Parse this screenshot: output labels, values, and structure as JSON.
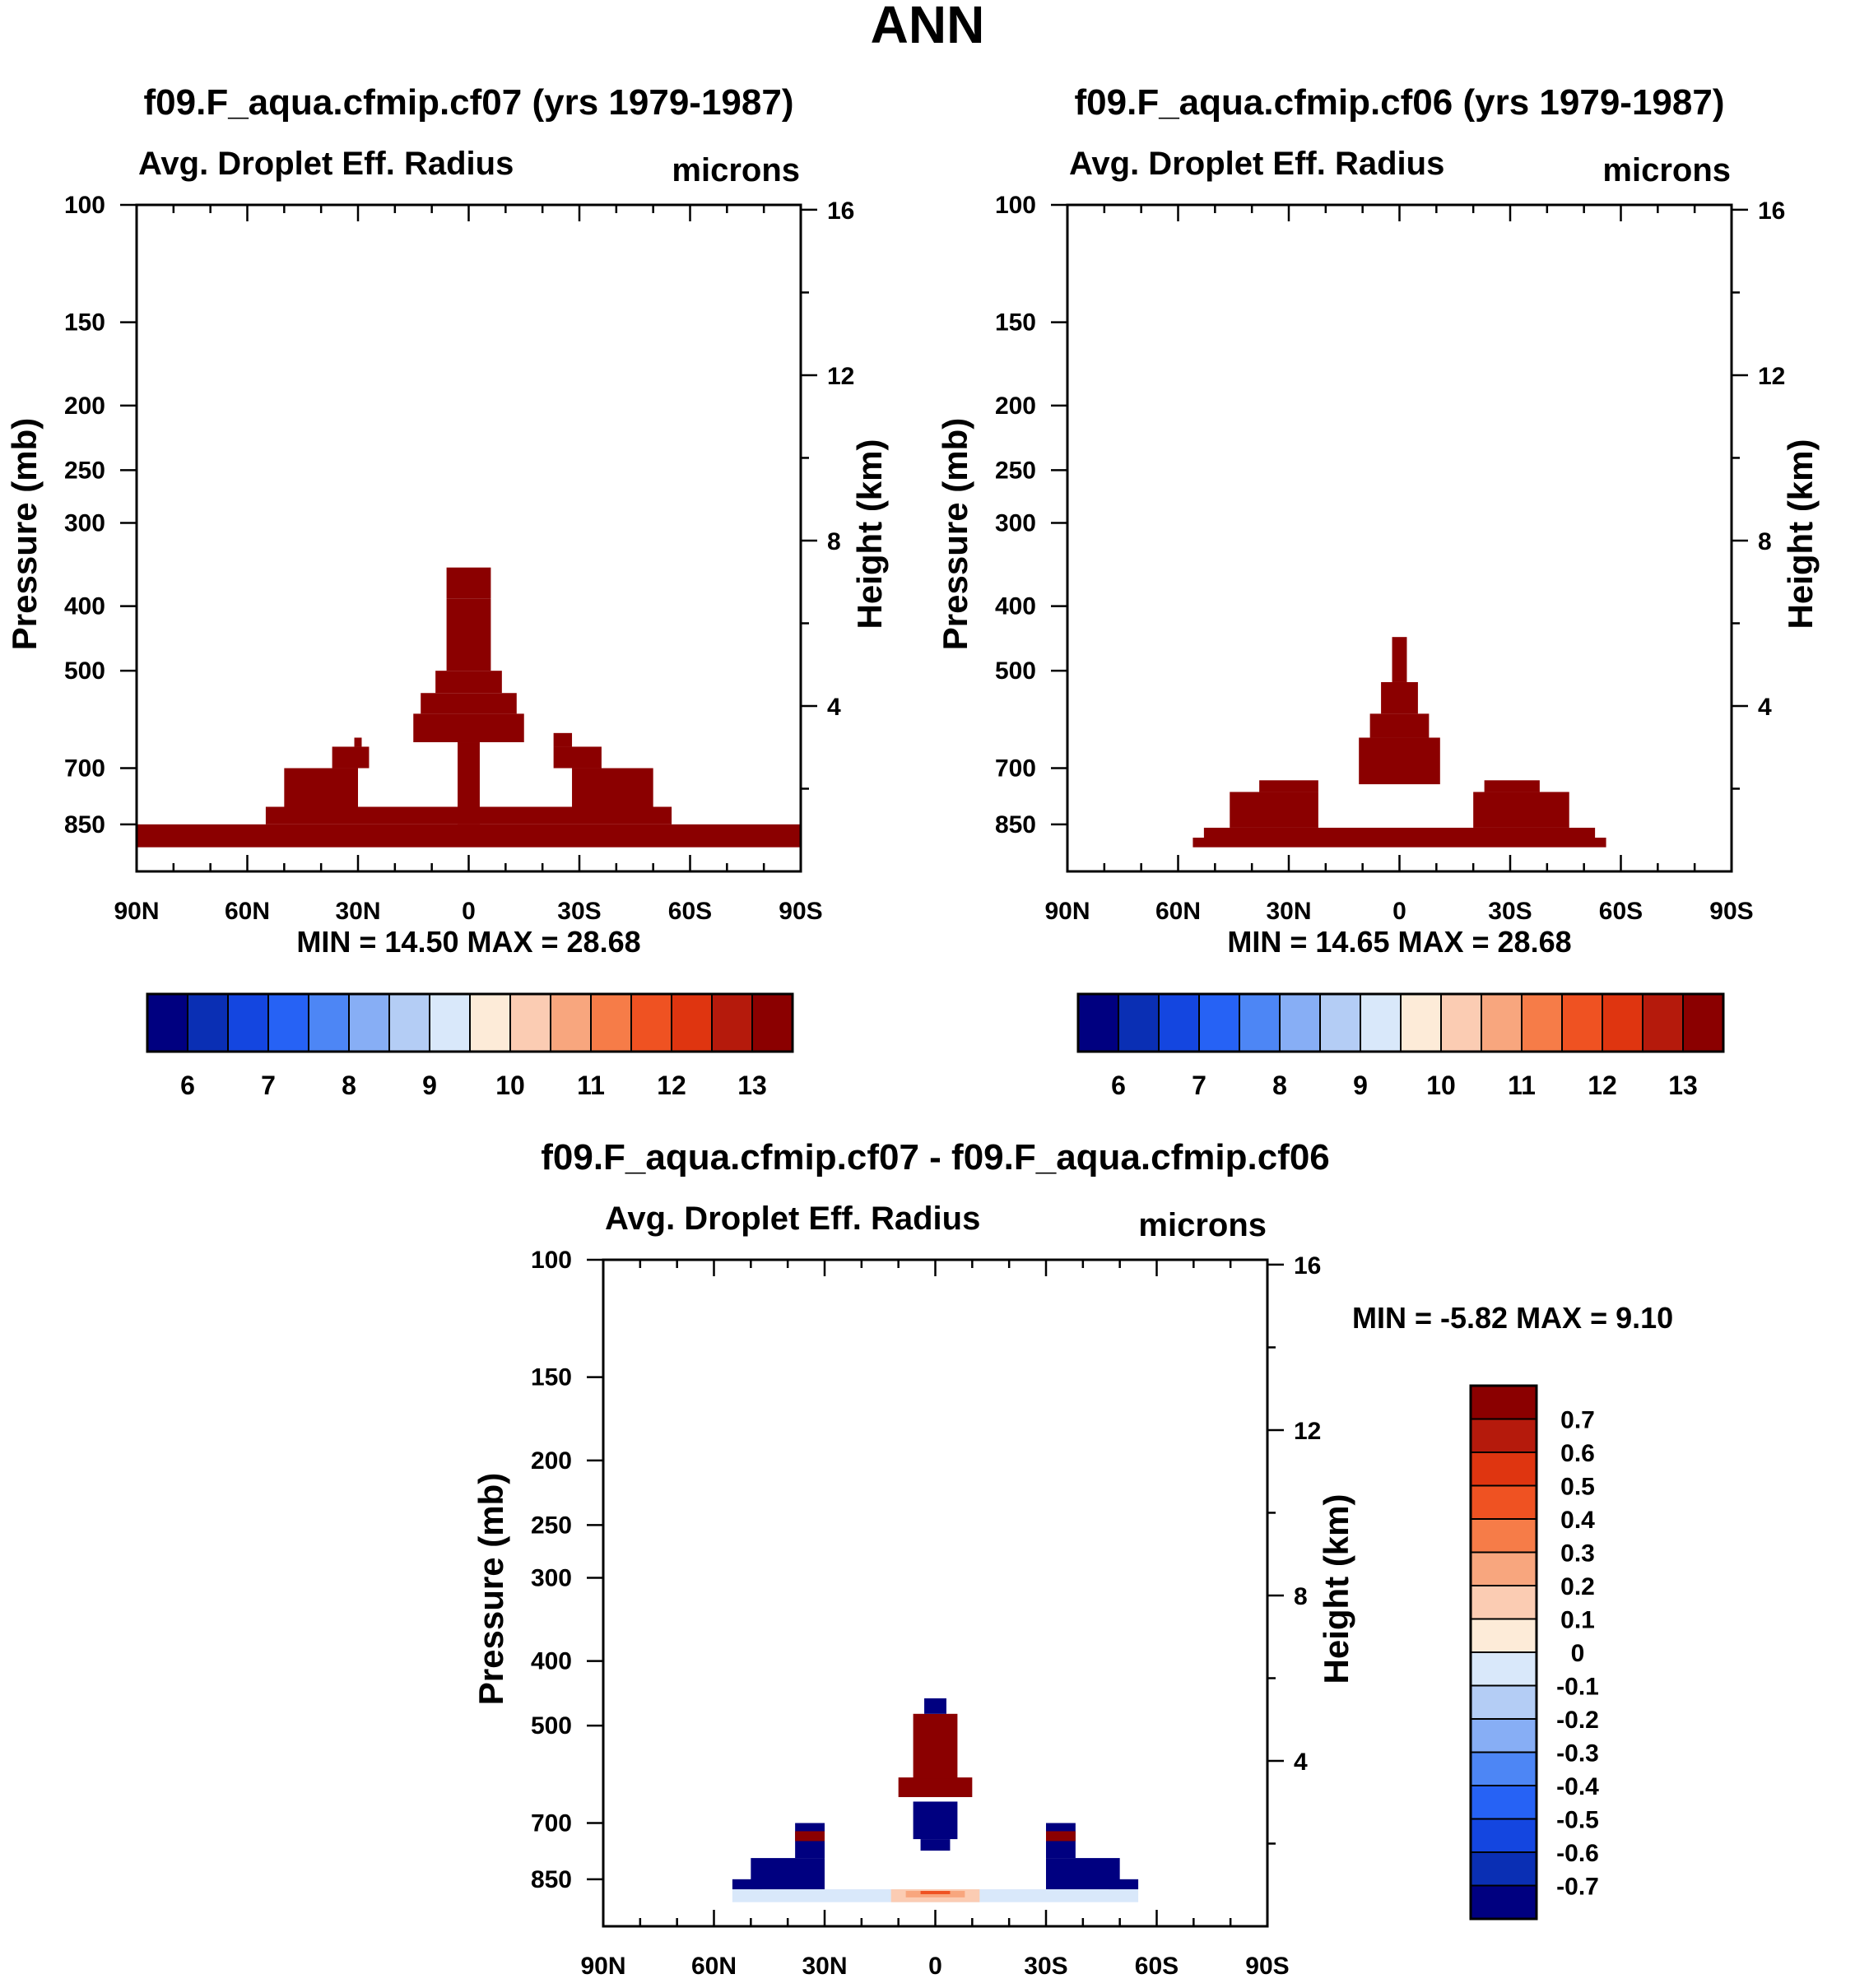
{
  "figure_title": "ANN",
  "colors": {
    "abs": [
      "#000080",
      "#0a2fb4",
      "#1446e0",
      "#2662f5",
      "#4d86f5",
      "#87aef5",
      "#b4cdf5",
      "#d9e8fa",
      "#fdebd8",
      "#fbccb3",
      "#f8a67e",
      "#f67c48",
      "#ef5222",
      "#df3510",
      "#b51a0c",
      "#8b0000"
    ],
    "diff": [
      "#000080",
      "#0a2fb4",
      "#1446e0",
      "#2662f5",
      "#4d86f5",
      "#87aef5",
      "#b4cdf5",
      "#d9e8fa",
      "#fdebd8",
      "#fbccb3",
      "#f8a67e",
      "#f67c48",
      "#ef5222",
      "#df3510",
      "#b51a0c",
      "#8b0000"
    ]
  },
  "chart_data": [
    {
      "id": "cf07",
      "type": "heatmap",
      "title": "f09.F_aqua.cfmip.cf07 (yrs 1979-1987)",
      "left_string": "Avg. Droplet Eff. Radius",
      "right_string": "microns",
      "ylabel": "Pressure (mb)",
      "ylabel_right": "Height (km)",
      "x_tick_labels": [
        "90N",
        "60N",
        "30N",
        "0",
        "30S",
        "60S",
        "90S"
      ],
      "x_ticks": [
        90,
        60,
        30,
        0,
        -30,
        -60,
        -90
      ],
      "xlim": [
        90,
        -90
      ],
      "y_tick_labels": [
        "100",
        "150",
        "200",
        "250",
        "300",
        "400",
        "500",
        "700",
        "850"
      ],
      "y_ticks": [
        100,
        150,
        200,
        250,
        300,
        400,
        500,
        700,
        850
      ],
      "ylim_mb": [
        100,
        1000
      ],
      "y2_tick_labels": [
        "16",
        "12",
        "8",
        "4"
      ],
      "y2_ticks_km": [
        16,
        12,
        8,
        4
      ],
      "minmax_text": "MIN =  14.50  MAX =  28.68",
      "min": 14.5,
      "max": 28.68,
      "levels": [
        5.5,
        6,
        6.5,
        7,
        7.5,
        8,
        8.5,
        9,
        9.5,
        10,
        10.5,
        11,
        11.5,
        12,
        12.5,
        13,
        13.5
      ],
      "colorbar_labels": [
        "6",
        "7",
        "8",
        "9",
        "10",
        "11",
        "12",
        "13"
      ],
      "filled_regions_value": 28.68,
      "filled_regions": [
        {
          "lat": [
            90,
            -90
          ],
          "p": [
            850,
            920
          ]
        },
        {
          "lat": [
            55,
            -55
          ],
          "p": [
            800,
            850
          ]
        },
        {
          "lat": [
            50,
            30
          ],
          "p": [
            700,
            800
          ]
        },
        {
          "lat": [
            -28,
            -50
          ],
          "p": [
            700,
            800
          ]
        },
        {
          "lat": [
            37,
            27
          ],
          "p": [
            650,
            700
          ]
        },
        {
          "lat": [
            -23,
            -36
          ],
          "p": [
            650,
            700
          ]
        },
        {
          "lat": [
            31,
            29
          ],
          "p": [
            630,
            650
          ]
        },
        {
          "lat": [
            -23,
            -28
          ],
          "p": [
            620,
            650
          ]
        },
        {
          "lat": [
            15,
            -15
          ],
          "p": [
            580,
            640
          ]
        },
        {
          "lat": [
            13,
            -13
          ],
          "p": [
            540,
            580
          ]
        },
        {
          "lat": [
            9,
            -9
          ],
          "p": [
            500,
            540
          ]
        },
        {
          "lat": [
            6,
            -6
          ],
          "p": [
            390,
            500
          ]
        },
        {
          "lat": [
            6,
            -6
          ],
          "p": [
            350,
            390
          ]
        },
        {
          "lat": [
            3,
            -3
          ],
          "p": [
            640,
            850
          ]
        }
      ]
    },
    {
      "id": "cf06",
      "type": "heatmap",
      "title": "f09.F_aqua.cfmip.cf06 (yrs 1979-1987)",
      "left_string": "Avg. Droplet Eff. Radius",
      "right_string": "microns",
      "ylabel": "Pressure (mb)",
      "ylabel_right": "Height (km)",
      "x_tick_labels": [
        "90N",
        "60N",
        "30N",
        "0",
        "30S",
        "60S",
        "90S"
      ],
      "x_ticks": [
        90,
        60,
        30,
        0,
        -30,
        -60,
        -90
      ],
      "xlim": [
        90,
        -90
      ],
      "y_tick_labels": [
        "100",
        "150",
        "200",
        "250",
        "300",
        "400",
        "500",
        "700",
        "850"
      ],
      "y_ticks": [
        100,
        150,
        200,
        250,
        300,
        400,
        500,
        700,
        850
      ],
      "ylim_mb": [
        100,
        1000
      ],
      "y2_tick_labels": [
        "16",
        "12",
        "8",
        "4"
      ],
      "y2_ticks_km": [
        16,
        12,
        8,
        4
      ],
      "minmax_text": "MIN =  14.65  MAX =  28.68",
      "min": 14.65,
      "max": 28.68,
      "levels": [
        5.5,
        6,
        6.5,
        7,
        7.5,
        8,
        8.5,
        9,
        9.5,
        10,
        10.5,
        11,
        11.5,
        12,
        12.5,
        13,
        13.5
      ],
      "colorbar_labels": [
        "6",
        "7",
        "8",
        "9",
        "10",
        "11",
        "12",
        "13"
      ],
      "filled_regions_value": 28.68,
      "filled_regions": [
        {
          "lat": [
            56,
            -56
          ],
          "p": [
            890,
            920
          ]
        },
        {
          "lat": [
            53,
            -53
          ],
          "p": [
            860,
            890
          ]
        },
        {
          "lat": [
            46,
            22
          ],
          "p": [
            760,
            860
          ]
        },
        {
          "lat": [
            -20,
            -46
          ],
          "p": [
            760,
            860
          ]
        },
        {
          "lat": [
            38,
            22
          ],
          "p": [
            730,
            760
          ]
        },
        {
          "lat": [
            -23,
            -38
          ],
          "p": [
            730,
            760
          ]
        },
        {
          "lat": [
            11,
            -11
          ],
          "p": [
            630,
            740
          ]
        },
        {
          "lat": [
            8,
            -8
          ],
          "p": [
            580,
            630
          ]
        },
        {
          "lat": [
            5,
            -5
          ],
          "p": [
            520,
            580
          ]
        },
        {
          "lat": [
            2,
            -2
          ],
          "p": [
            445,
            520
          ]
        }
      ]
    },
    {
      "id": "diff",
      "type": "heatmap",
      "title": "f09.F_aqua.cfmip.cf07 - f09.F_aqua.cfmip.cf06",
      "left_string": "Avg. Droplet Eff. Radius",
      "right_string": "microns",
      "ylabel": "Pressure (mb)",
      "ylabel_right": "Height (km)",
      "x_tick_labels": [
        "90N",
        "60N",
        "30N",
        "0",
        "30S",
        "60S",
        "90S"
      ],
      "x_ticks": [
        90,
        60,
        30,
        0,
        -30,
        -60,
        -90
      ],
      "xlim": [
        90,
        -90
      ],
      "y_tick_labels": [
        "100",
        "150",
        "200",
        "250",
        "300",
        "400",
        "500",
        "700",
        "850"
      ],
      "y_ticks": [
        100,
        150,
        200,
        250,
        300,
        400,
        500,
        700,
        850
      ],
      "ylim_mb": [
        100,
        1000
      ],
      "y2_tick_labels": [
        "16",
        "12",
        "8",
        "4"
      ],
      "y2_ticks_km": [
        16,
        12,
        8,
        4
      ],
      "minmax_text": "MIN =  -5.82  MAX =   9.10",
      "min": -5.82,
      "max": 9.1,
      "levels": [
        -0.7,
        -0.6,
        -0.5,
        -0.4,
        -0.3,
        -0.2,
        -0.1,
        0,
        0.1,
        0.2,
        0.3,
        0.4,
        0.5,
        0.6,
        0.7
      ],
      "colorbar_labels": [
        "0.7",
        "0.6",
        "0.5",
        "0.4",
        "0.3",
        "0.2",
        "0.1",
        "0",
        "-0.1",
        "-0.2",
        "-0.3",
        "-0.4",
        "-0.5",
        "-0.6",
        "-0.7"
      ],
      "diff_regions": [
        {
          "lat": [
            55,
            -55
          ],
          "p": [
            880,
            920
          ],
          "value": -0.05
        },
        {
          "lat": [
            12,
            -12
          ],
          "p": [
            880,
            920
          ],
          "value": 0.12
        },
        {
          "lat": [
            8,
            -8
          ],
          "p": [
            885,
            905
          ],
          "value": 0.25
        },
        {
          "lat": [
            4,
            -4
          ],
          "p": [
            885,
            895
          ],
          "value": 0.4
        },
        {
          "lat": [
            55,
            47
          ],
          "p": [
            850,
            880
          ],
          "value": -0.8
        },
        {
          "lat": [
            -47,
            -55
          ],
          "p": [
            850,
            880
          ],
          "value": -0.8
        },
        {
          "lat": [
            50,
            30
          ],
          "p": [
            790,
            880
          ],
          "value": -0.8
        },
        {
          "lat": [
            -30,
            -50
          ],
          "p": [
            790,
            880
          ],
          "value": -0.8
        },
        {
          "lat": [
            38,
            30
          ],
          "p": [
            700,
            790
          ],
          "value": -0.8
        },
        {
          "lat": [
            -30,
            -38
          ],
          "p": [
            700,
            790
          ],
          "value": -0.8
        },
        {
          "lat": [
            38,
            30
          ],
          "p": [
            720,
            745
          ],
          "value": 0.8
        },
        {
          "lat": [
            -30,
            -38
          ],
          "p": [
            720,
            745
          ],
          "value": 0.8
        },
        {
          "lat": [
            4,
            -4
          ],
          "p": [
            740,
            770
          ],
          "value": -0.8
        },
        {
          "lat": [
            6,
            -6
          ],
          "p": [
            650,
            740
          ],
          "value": -0.8
        },
        {
          "lat": [
            10,
            -10
          ],
          "p": [
            598,
            640
          ],
          "value": 0.8
        },
        {
          "lat": [
            6,
            -6
          ],
          "p": [
            480,
            600
          ],
          "value": 0.8
        },
        {
          "lat": [
            3,
            -3
          ],
          "p": [
            455,
            480
          ],
          "value": -0.8
        }
      ]
    }
  ]
}
